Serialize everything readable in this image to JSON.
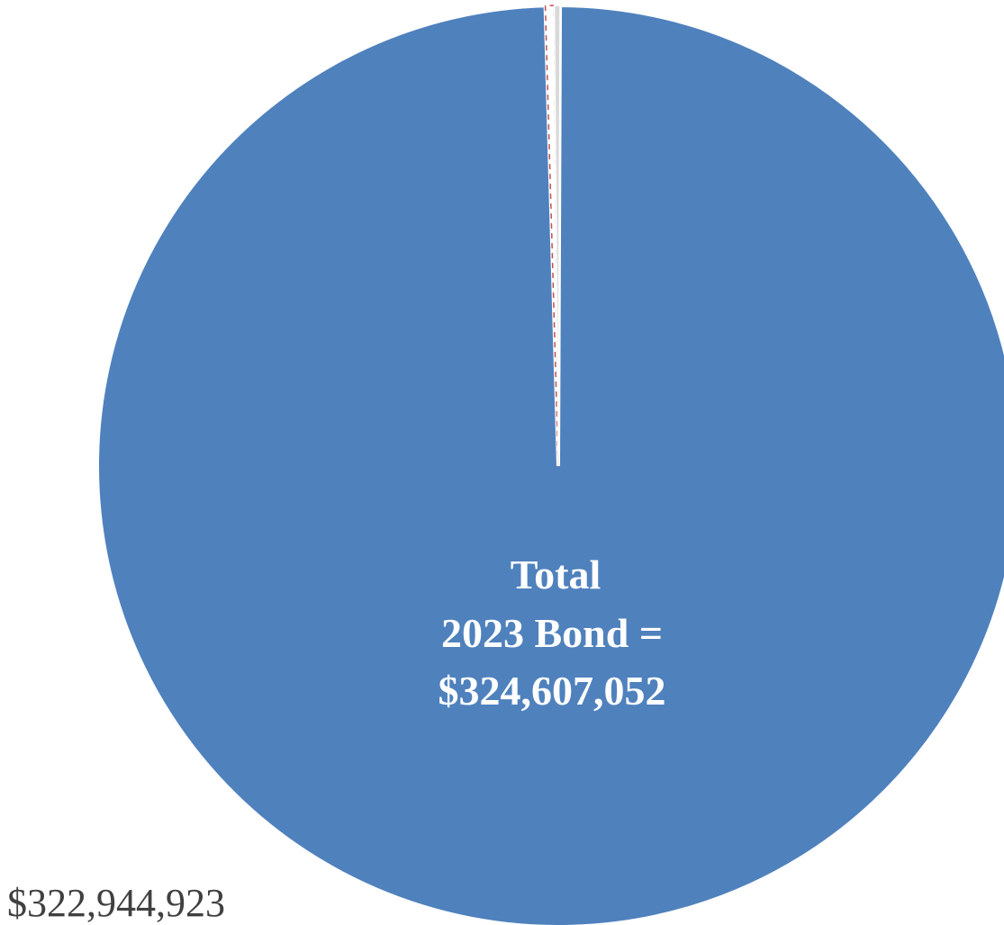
{
  "chart_data": {
    "type": "pie",
    "center_label": [
      "Total",
      "2023 Bond =",
      "$324,607,052"
    ],
    "slices": [
      {
        "value": 322944923,
        "value_label": "$322,944,923",
        "color": "#4f81bd"
      },
      {
        "value": 1000000,
        "color": "#c0504d",
        "pattern": "dashed"
      },
      {
        "value": 662129,
        "color": "#d9d9d9"
      }
    ],
    "total": 324607052
  }
}
